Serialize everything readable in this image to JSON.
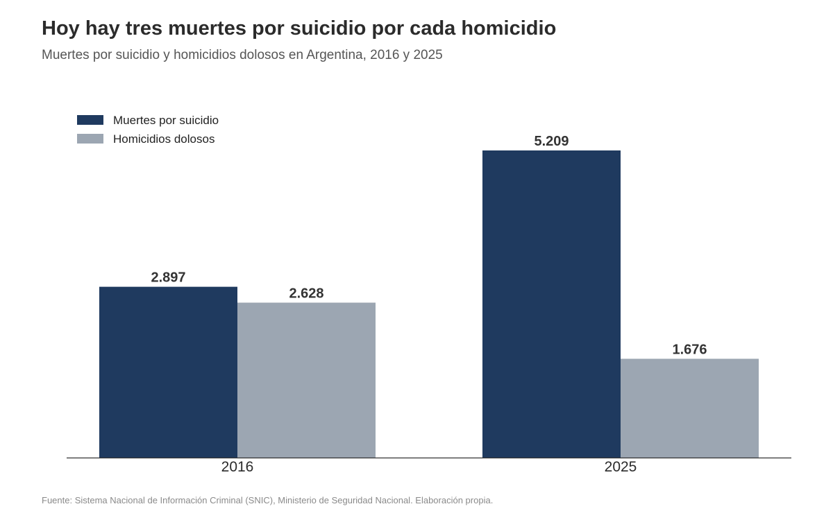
{
  "header": {
    "title": "Hoy hay tres muertes por suicidio por cada homicidio",
    "subtitle": "Muertes por suicidio y homicidios dolosos en Argentina, 2016 y 2025"
  },
  "footer": {
    "source": "Fuente: Sistema Nacional de Información Criminal (SNIC), Ministerio de Seguridad Nacional. Elaboración propia."
  },
  "chart_data": {
    "type": "bar",
    "categories": [
      "2016",
      "2025"
    ],
    "series": [
      {
        "name": "Muertes por suicidio",
        "values": [
          2897,
          5209
        ],
        "labels": [
          "2.897",
          "5.209"
        ],
        "color": "#1f3a5f"
      },
      {
        "name": "Homicidios dolosos",
        "values": [
          2628,
          1676
        ],
        "labels": [
          "2.628",
          "1.676"
        ],
        "color": "#9ca6b2"
      }
    ],
    "title": "Hoy hay tres muertes por suicidio por cada homicidio",
    "subtitle": "Muertes por suicidio y homicidios dolosos en Argentina, 2016 y 2025",
    "xlabel": "",
    "ylabel": "",
    "ylim": [
      0,
      5500
    ],
    "grid": false,
    "legend_position": "top-left",
    "axis_color": "#333333"
  }
}
